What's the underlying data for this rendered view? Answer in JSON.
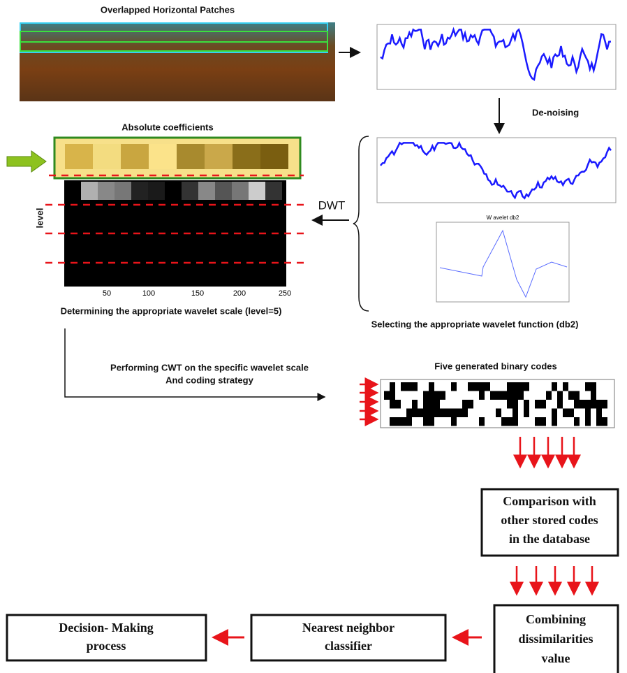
{
  "patches": {
    "title": "Overlapped Horizontal Patches"
  },
  "denoising": "De-noising",
  "coefficients": {
    "title": "Absolute coefficients",
    "axis_label": "level",
    "xticks": [
      50,
      100,
      150,
      200,
      250
    ]
  },
  "dwt": "DWT",
  "scale_caption": "Determining the appropriate wavelet scale (level=5)",
  "wavelet": {
    "title": "W avelet db2",
    "caption": "Selecting the appropriate wavelet function (db2)"
  },
  "cwt_caption": [
    "Performing CWT on the specific wavelet scale",
    "And coding strategy"
  ],
  "codes_title": "Five generated binary codes",
  "nodes": [
    {
      "lines": [
        "Comparison with",
        "other stored codes",
        "in the database"
      ]
    },
    {
      "lines": [
        "Combining",
        "dissimilarities",
        "value"
      ]
    },
    {
      "lines": [
        "Nearest neighbor",
        "classifier"
      ]
    },
    {
      "lines": [
        "Decision- Making",
        "process"
      ]
    }
  ]
}
